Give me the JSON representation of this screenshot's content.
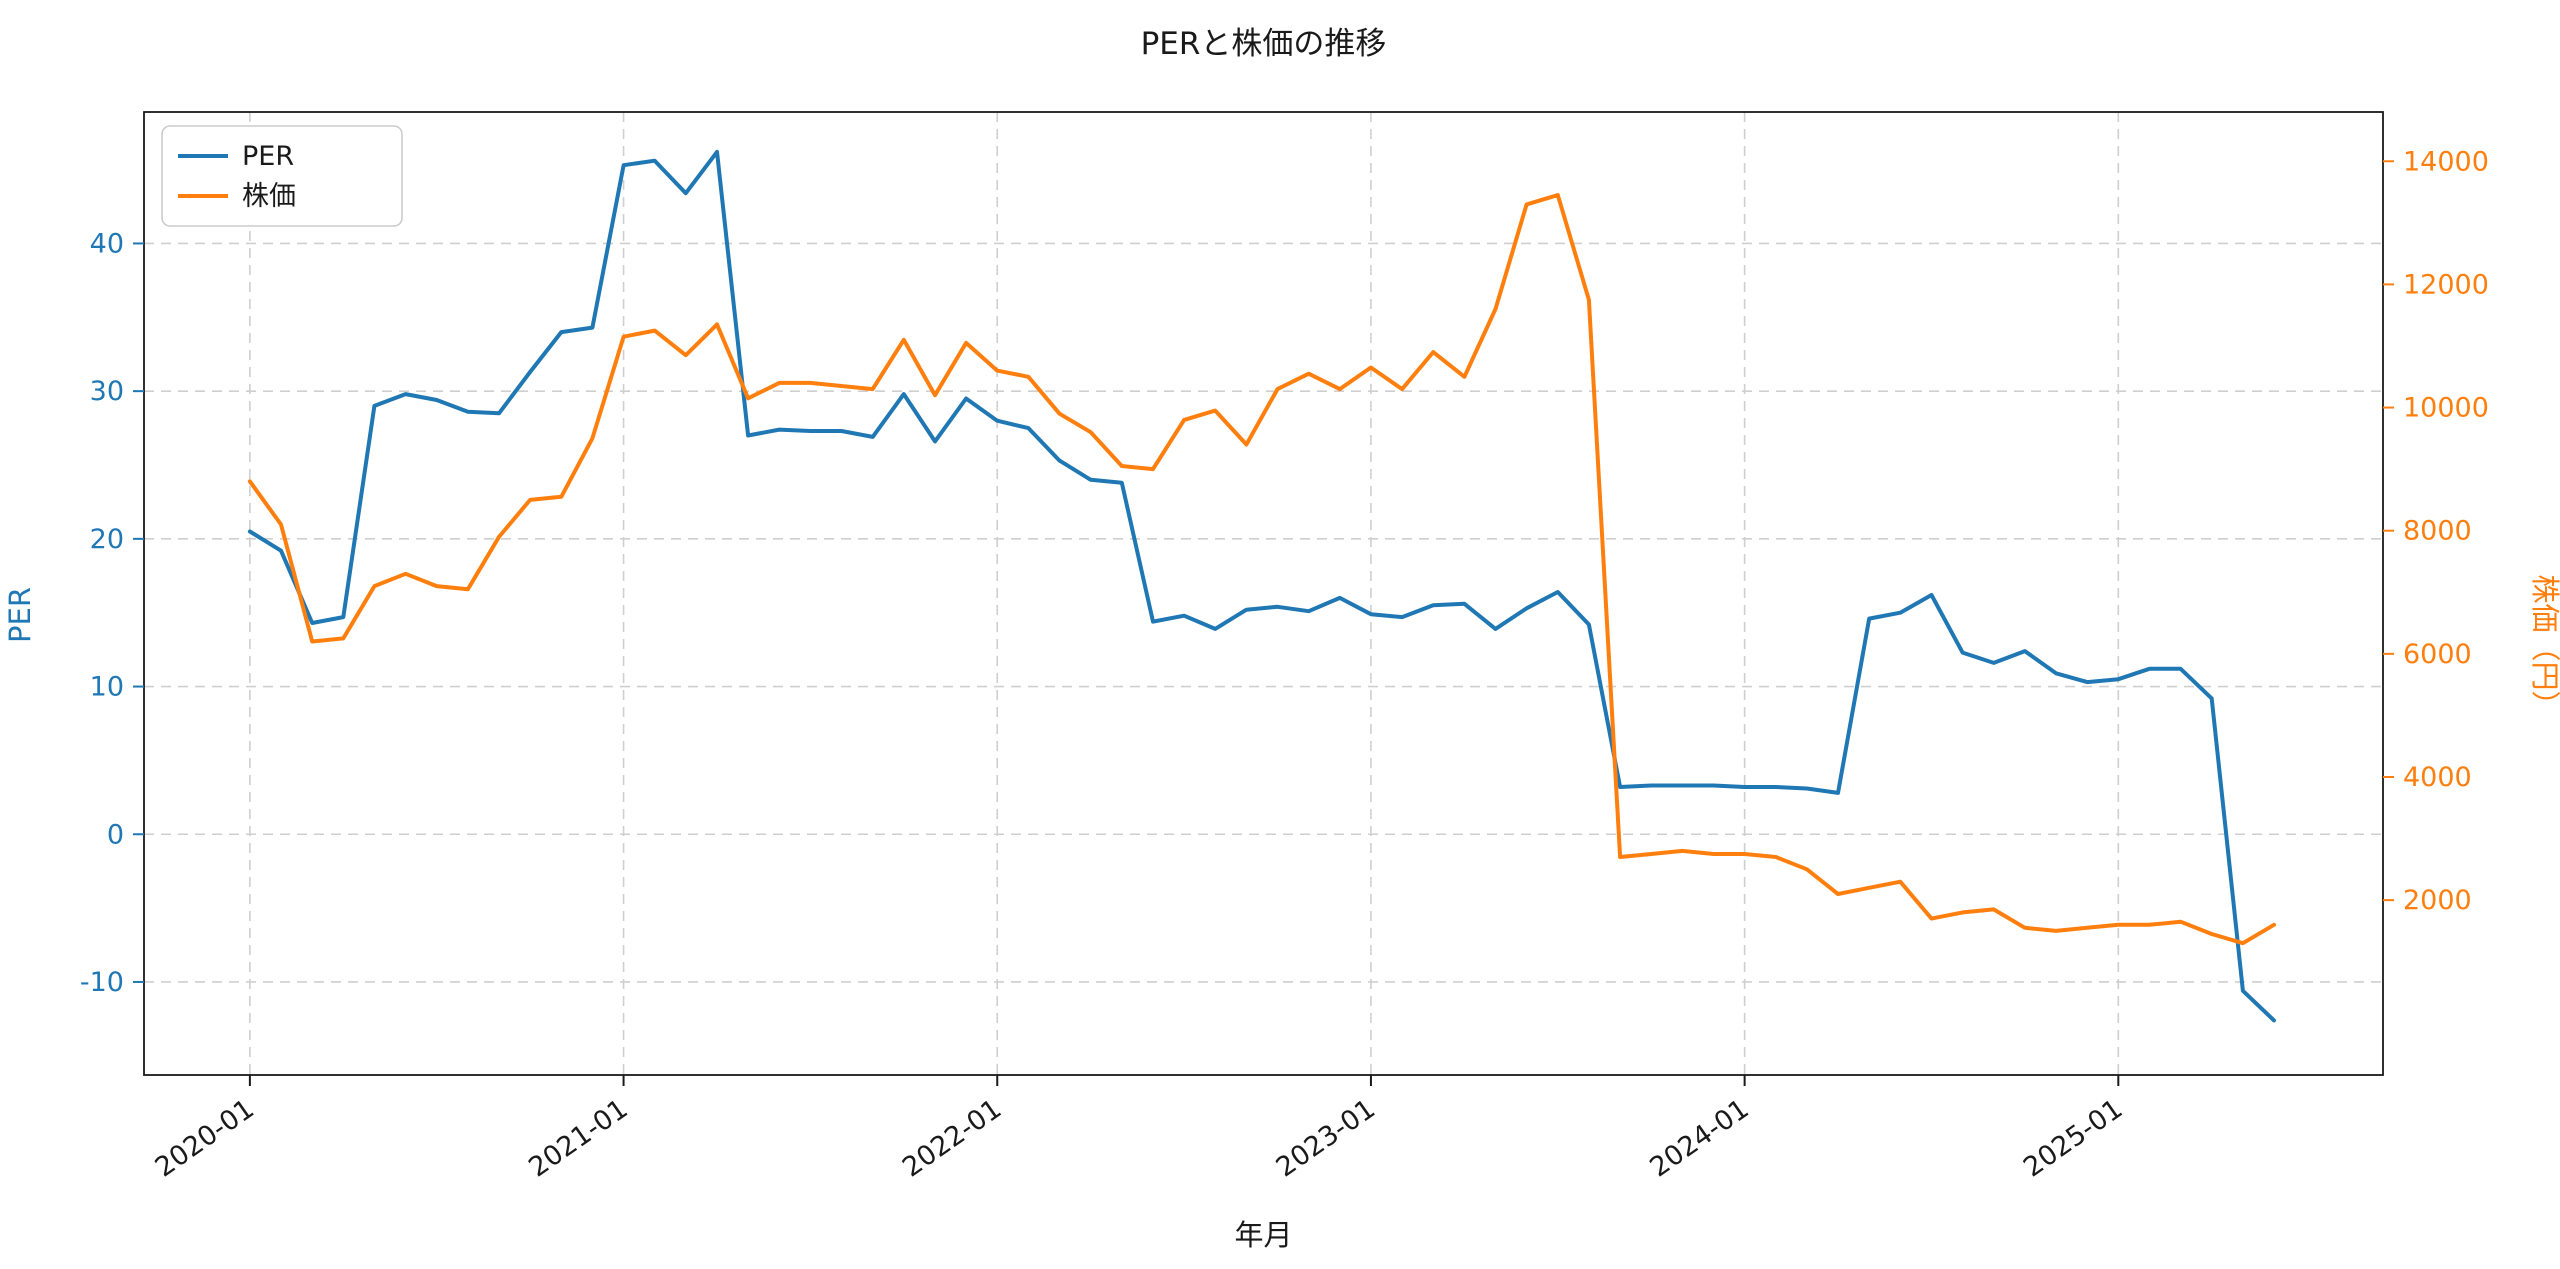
{
  "chart_data": {
    "type": "line",
    "title": "PERと株価の推移",
    "xlabel": "年月",
    "grid": true,
    "legend_position": "upper left",
    "x": [
      "2020-01",
      "2020-02",
      "2020-03",
      "2020-04",
      "2020-05",
      "2020-06",
      "2020-07",
      "2020-08",
      "2020-09",
      "2020-10",
      "2020-11",
      "2020-12",
      "2021-01",
      "2021-02",
      "2021-03",
      "2021-04",
      "2021-05",
      "2021-06",
      "2021-07",
      "2021-08",
      "2021-09",
      "2021-10",
      "2021-11",
      "2021-12",
      "2022-01",
      "2022-02",
      "2022-03",
      "2022-04",
      "2022-05",
      "2022-06",
      "2022-07",
      "2022-08",
      "2022-09",
      "2022-10",
      "2022-11",
      "2022-12",
      "2023-01",
      "2023-02",
      "2023-03",
      "2023-04",
      "2023-05",
      "2023-06",
      "2023-07",
      "2023-08",
      "2023-09",
      "2023-10",
      "2023-11",
      "2023-12",
      "2024-01",
      "2024-02",
      "2024-03",
      "2024-04",
      "2024-05",
      "2024-06",
      "2024-07",
      "2024-08",
      "2024-09",
      "2024-10",
      "2024-11",
      "2024-12",
      "2025-01",
      "2025-02",
      "2025-03",
      "2025-04",
      "2025-05",
      "2025-06"
    ],
    "x_ticks": [
      "2020-01",
      "2021-01",
      "2022-01",
      "2023-01",
      "2024-01",
      "2025-01"
    ],
    "xlim_index": [
      -3.4,
      68.5
    ],
    "series": [
      {
        "name": "PER",
        "axis": "left",
        "color": "#1f77b4",
        "values": [
          20.5,
          19.2,
          14.3,
          14.7,
          29.0,
          29.8,
          29.4,
          28.6,
          28.5,
          31.3,
          34.0,
          34.3,
          45.3,
          45.6,
          43.4,
          46.2,
          27.0,
          27.4,
          27.3,
          27.3,
          26.9,
          29.8,
          26.6,
          29.5,
          28.0,
          27.5,
          25.3,
          24.0,
          23.8,
          14.4,
          14.8,
          13.9,
          15.2,
          15.4,
          15.1,
          16.0,
          14.9,
          14.7,
          15.5,
          15.6,
          13.9,
          15.3,
          16.4,
          14.2,
          3.2,
          3.3,
          3.3,
          3.3,
          3.2,
          3.2,
          3.1,
          2.8,
          14.6,
          15.0,
          16.2,
          12.3,
          11.6,
          12.4,
          10.9,
          10.3,
          10.5,
          11.2,
          11.2,
          9.2,
          -10.6,
          -12.6
        ]
      },
      {
        "name": "株価",
        "axis": "right",
        "color": "#ff7f0e",
        "values": [
          8800,
          8100,
          6200,
          6250,
          7100,
          7300,
          7100,
          7050,
          7900,
          8500,
          8550,
          9500,
          11150,
          11250,
          10850,
          11350,
          10150,
          10400,
          10400,
          10350,
          10300,
          11100,
          10200,
          11050,
          10600,
          10500,
          9900,
          9600,
          9050,
          9000,
          9800,
          9950,
          9400,
          10300,
          10550,
          10300,
          10650,
          10300,
          10900,
          10500,
          11600,
          13300,
          13450,
          11750,
          2700,
          2750,
          2800,
          2750,
          2750,
          2700,
          2500,
          2100,
          2200,
          2300,
          1700,
          1800,
          1850,
          1550,
          1500,
          1550,
          1600,
          1600,
          1650,
          1450,
          1300,
          1600
        ]
      }
    ],
    "left_axis": {
      "label": "PER",
      "color": "#1f77b4",
      "ticks": [
        -10,
        0,
        10,
        20,
        30,
        40
      ],
      "ylim": [
        -16.3,
        48.9
      ]
    },
    "right_axis": {
      "label": "株価（円）",
      "color": "#ff7f0e",
      "ticks": [
        2000,
        4000,
        6000,
        8000,
        10000,
        12000,
        14000
      ],
      "ylim": [
        -840,
        14800
      ]
    }
  }
}
